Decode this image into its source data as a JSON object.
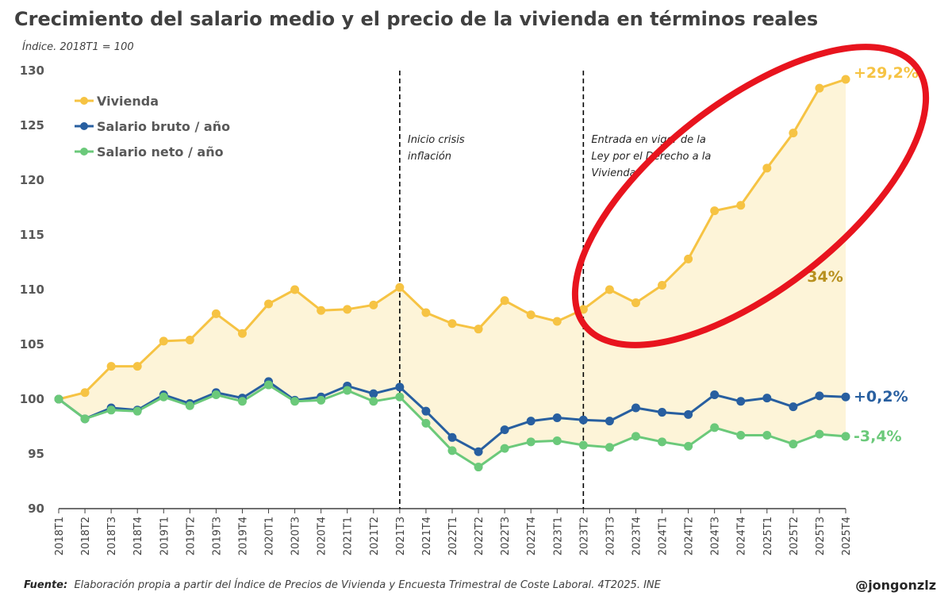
{
  "title": "Crecimiento del salario medio y el precio de la vivienda en términos reales",
  "subtitle": "Índice. 2018T1 = 100",
  "chart_data": {
    "type": "line",
    "title": "Crecimiento del salario medio y el precio de la vivienda en términos reales",
    "subtitle": "Índice. 2018T1 = 100",
    "xlabel": "",
    "ylabel": "",
    "ylim": [
      90,
      130
    ],
    "yticks": [
      90,
      95,
      100,
      105,
      110,
      115,
      120,
      125,
      130
    ],
    "grid": false,
    "legend_position": "top-left",
    "categories": [
      "2018T1",
      "2018T2",
      "2018T3",
      "2018T4",
      "2019T1",
      "2019T2",
      "2019T3",
      "2019T4",
      "2020T1",
      "2020T3",
      "2020T4",
      "2021T1",
      "2021T2",
      "2021T3",
      "2021T4",
      "2022T1",
      "2022T2",
      "2022T3",
      "2022T4",
      "2023T1",
      "2023T2",
      "2023T3",
      "2023T4",
      "2024T1",
      "2024T2",
      "2024T3",
      "2024T4",
      "2025T1",
      "2025T2",
      "2025T3",
      "2025T4"
    ],
    "series": [
      {
        "name": "Vivienda",
        "color": "#f6c343",
        "end_label": "+29,2%",
        "values": [
          100.0,
          100.6,
          103.0,
          103.0,
          105.3,
          105.4,
          107.8,
          106.0,
          108.7,
          110.0,
          108.1,
          108.2,
          108.6,
          110.2,
          107.9,
          106.9,
          106.4,
          109.0,
          107.7,
          107.1,
          108.2,
          110.0,
          108.8,
          110.4,
          112.8,
          117.2,
          117.7,
          121.1,
          124.3,
          128.4,
          129.2
        ]
      },
      {
        "name": "Salario bruto / año",
        "color": "#285fa0",
        "end_label": "+0,2%",
        "values": [
          100.0,
          98.2,
          99.2,
          99.0,
          100.4,
          99.6,
          100.6,
          100.1,
          101.6,
          99.9,
          100.2,
          101.2,
          100.5,
          101.1,
          98.9,
          96.5,
          95.2,
          97.2,
          98.0,
          98.3,
          98.1,
          98.0,
          99.2,
          98.8,
          98.6,
          100.4,
          99.8,
          100.1,
          99.3,
          100.3,
          100.2
        ]
      },
      {
        "name": "Salario neto / año",
        "color": "#6bc97a",
        "end_label": "-3,4%",
        "values": [
          100.0,
          98.2,
          99.0,
          98.9,
          100.2,
          99.4,
          100.4,
          99.8,
          101.3,
          99.8,
          99.9,
          100.8,
          99.8,
          100.2,
          97.8,
          95.3,
          93.8,
          95.5,
          96.1,
          96.2,
          95.8,
          95.6,
          96.6,
          96.1,
          95.7,
          97.4,
          96.7,
          96.7,
          95.9,
          96.8,
          96.6
        ]
      }
    ],
    "gap_fill_color": "#fdf4d8",
    "gap_label": "34%",
    "gap_label_color": "#b8901e",
    "annotations": [
      {
        "at": "2021T3",
        "text": [
          "Inicio crisis",
          "inflación"
        ]
      },
      {
        "at": "2023T2",
        "text": [
          "Entrada en vigor de la",
          "Ley por el Derecho a la",
          "Vivienda"
        ]
      }
    ],
    "highlight_ellipse_color": "#e8141e"
  },
  "footer": {
    "source_label": "Fuente:",
    "source_text": "Elaboración propia a partir del Índice de Precios de Vivienda y Encuesta Trimestral de Coste Laboral. 4T2025. INE",
    "handle": "@jongonzlz"
  }
}
